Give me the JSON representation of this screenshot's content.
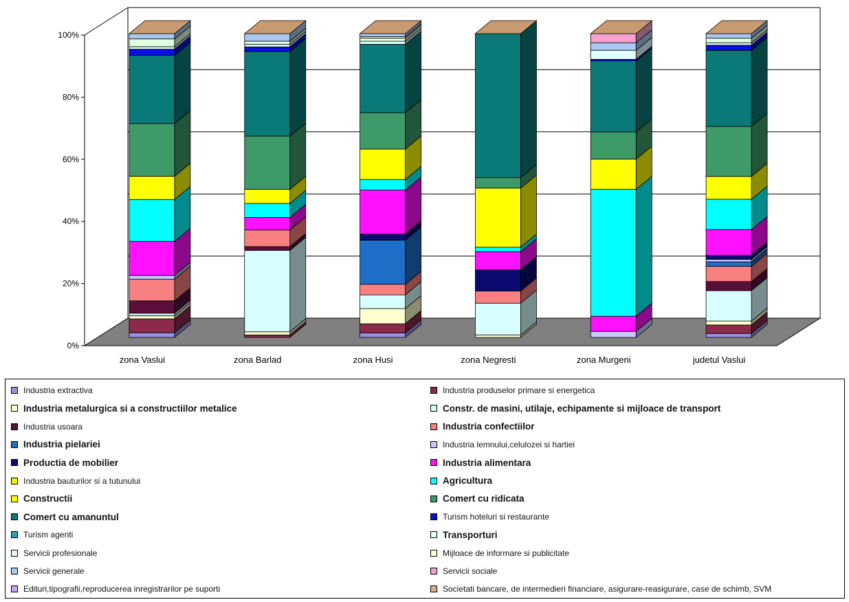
{
  "chart_data": {
    "type": "bar",
    "stacked": "percent",
    "three_d": true,
    "categories": [
      "zona Vaslui",
      "zona Barlad",
      "zona Husi",
      "zona Negresti",
      "zona Murgeni",
      "judetul Vaslui"
    ],
    "ylim": [
      0,
      100
    ],
    "yticks": [
      "0%",
      "20%",
      "40%",
      "60%",
      "80%",
      "100%"
    ],
    "grid": true,
    "legend_position": "bottom",
    "series": [
      {
        "name": "Industria extractiva",
        "color": "#9b8fe0",
        "bold": false,
        "values": [
          1.5,
          0,
          1.5,
          0,
          0,
          1.3
        ]
      },
      {
        "name": "Industria produselor primare si energetica",
        "color": "#8b2a4a",
        "bold": false,
        "values": [
          4.5,
          0.8,
          3.0,
          0,
          0,
          2.8
        ]
      },
      {
        "name": "Industria metalurgica si a constructiilor metalice",
        "color": "#ffffd0",
        "bold": true,
        "values": [
          1.0,
          1.0,
          5.0,
          0.8,
          0,
          1.3
        ]
      },
      {
        "name": "Constr. de masini, utilaje, echipamente si mijloace de transport",
        "color": "#d8ffff",
        "bold": true,
        "values": [
          0.8,
          26.0,
          4.5,
          10.5,
          0,
          10.0
        ]
      },
      {
        "name": "Industria usoara",
        "color": "#5a0e3a",
        "bold": false,
        "values": [
          4.0,
          1.2,
          0,
          0,
          0,
          3.0
        ]
      },
      {
        "name": "Industria confectiilor",
        "color": "#f88080",
        "bold": true,
        "values": [
          7.0,
          5.3,
          3.5,
          4.0,
          0,
          5.0
        ]
      },
      {
        "name": "Industria pielariei",
        "color": "#1e6ec8",
        "bold": true,
        "values": [
          0,
          0,
          14.5,
          0,
          0,
          1.5
        ]
      },
      {
        "name": "Industria lemnului,celulozei si hartiei",
        "color": "#c8c8ff",
        "bold": false,
        "values": [
          1.2,
          0,
          0,
          0,
          2.0,
          0.8
        ]
      },
      {
        "name": "Productia de mobilier",
        "color": "#0a0a70",
        "bold": true,
        "values": [
          0,
          0,
          2.0,
          7.0,
          0,
          1.3
        ]
      },
      {
        "name": "Industria alimentara",
        "color": "#ff10ff",
        "bold": true,
        "values": [
          11.0,
          4.0,
          14.5,
          6.0,
          5.0,
          8.5
        ]
      },
      {
        "name": "Industria bauturilor si a tutunului",
        "color": "#f0f000",
        "bold": false,
        "values": [
          0,
          0,
          0,
          0,
          0,
          0
        ]
      },
      {
        "name": "Agricultura",
        "color": "#00ffff",
        "bold": true,
        "values": [
          13.5,
          4.5,
          3.5,
          1.5,
          42.0,
          10.0
        ]
      },
      {
        "name": "Constructii",
        "color": "#ffff00",
        "bold": true,
        "values": [
          7.5,
          4.5,
          10.0,
          19.5,
          10.0,
          7.5
        ]
      },
      {
        "name": "Comert cu ridicata",
        "color": "#3f9a6a",
        "bold": true,
        "values": [
          17.0,
          17.0,
          12.0,
          3.5,
          9.0,
          16.5
        ]
      },
      {
        "name": "Comert cu amanuntul",
        "color": "#0a7a78",
        "bold": true,
        "values": [
          22.0,
          27.0,
          22.5,
          47.5,
          23.5,
          25.0
        ]
      },
      {
        "name": "Turism hoteluri si restaurante",
        "color": "#0a10e0",
        "bold": false,
        "values": [
          2.0,
          1.5,
          0,
          0,
          0.5,
          1.7
        ]
      },
      {
        "name": "Turism agenti",
        "color": "#2aa0b8",
        "bold": false,
        "values": [
          0,
          0,
          0,
          0,
          0,
          0
        ]
      },
      {
        "name": "Transporturi",
        "color": "#e0ffff",
        "bold": true,
        "values": [
          0.8,
          0.8,
          1.0,
          0,
          3.0,
          0.8
        ]
      },
      {
        "name": "Servicii profesionale",
        "color": "#e0ffe0",
        "bold": false,
        "values": [
          2.5,
          1.0,
          1.0,
          0,
          0,
          1.5
        ]
      },
      {
        "name": "Mijloace de informare si publicitate",
        "color": "#ffffd8",
        "bold": false,
        "values": [
          0,
          0,
          0.5,
          0,
          0,
          0
        ]
      },
      {
        "name": "Servicii generale",
        "color": "#a8c8f0",
        "bold": false,
        "values": [
          1.7,
          2.4,
          1.0,
          0,
          2.5,
          1.5
        ]
      },
      {
        "name": "Servicii sociale",
        "color": "#f8a0d0",
        "bold": false,
        "values": [
          0,
          0,
          0,
          0,
          3.0,
          0
        ]
      },
      {
        "name": "Edituri,tipografii,reproducerea inregistrarilor pe suporti",
        "color": "#c0a8f8",
        "bold": false,
        "values": [
          0,
          0,
          0,
          0,
          0,
          0
        ]
      },
      {
        "name": "Societati bancare, de intermedieri financiare, asigurare-reasigurare, case de schimb, SVM",
        "color": "#d8b088",
        "bold": false,
        "values": [
          0,
          0,
          0,
          0,
          0,
          0
        ]
      }
    ]
  },
  "colors": {
    "floor": "#808080",
    "gridline": "#000000",
    "background": "#ffffff"
  }
}
